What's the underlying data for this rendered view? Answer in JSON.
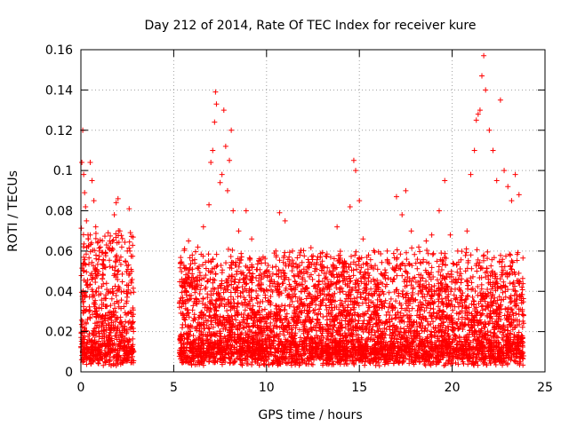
{
  "chart_data": {
    "type": "scatter",
    "title": "Day 212 of 2014, Rate Of TEC Index for receiver kure",
    "xlabel": "GPS time / hours",
    "ylabel": "ROTI / TECUs",
    "xlim": [
      0,
      25
    ],
    "ylim": [
      0,
      0.16
    ],
    "x_ticks": [
      0,
      5,
      10,
      15,
      20,
      25
    ],
    "y_ticks": [
      0,
      0.02,
      0.04,
      0.06,
      0.08,
      0.1,
      0.12,
      0.14,
      0.16
    ],
    "x_tick_labels": [
      "0",
      "5",
      "10",
      "15",
      "20",
      "25"
    ],
    "y_tick_labels": [
      "0",
      "0.02",
      "0.04",
      "0.06",
      "0.08",
      "0.1",
      "0.12",
      "0.14",
      "0.16"
    ],
    "grid": true,
    "marker": "+",
    "marker_color": "#ff0000",
    "data_gap": [
      2.85,
      5.3
    ],
    "points": [
      [
        0.05,
        0.104
      ],
      [
        0.1,
        0.12
      ],
      [
        0.15,
        0.098
      ],
      [
        0.2,
        0.089
      ],
      [
        0.25,
        0.082
      ],
      [
        0.3,
        0.075
      ],
      [
        0.4,
        0.066
      ],
      [
        0.5,
        0.104
      ],
      [
        0.6,
        0.095
      ],
      [
        0.7,
        0.085
      ],
      [
        0.8,
        0.072
      ],
      [
        0.9,
        0.064
      ],
      [
        1.0,
        0.06
      ],
      [
        1.2,
        0.048
      ],
      [
        1.5,
        0.04
      ],
      [
        1.8,
        0.078
      ],
      [
        1.9,
        0.084
      ],
      [
        2.0,
        0.086
      ],
      [
        2.1,
        0.07
      ],
      [
        2.2,
        0.062
      ],
      [
        2.4,
        0.055
      ],
      [
        2.5,
        0.06
      ],
      [
        2.6,
        0.081
      ],
      [
        2.7,
        0.045
      ],
      [
        5.6,
        0.04
      ],
      [
        5.8,
        0.065
      ],
      [
        6.0,
        0.058
      ],
      [
        6.3,
        0.062
      ],
      [
        6.6,
        0.072
      ],
      [
        6.9,
        0.083
      ],
      [
        7.0,
        0.104
      ],
      [
        7.1,
        0.11
      ],
      [
        7.2,
        0.124
      ],
      [
        7.25,
        0.139
      ],
      [
        7.3,
        0.133
      ],
      [
        7.5,
        0.094
      ],
      [
        7.6,
        0.098
      ],
      [
        7.7,
        0.13
      ],
      [
        7.8,
        0.112
      ],
      [
        7.9,
        0.09
      ],
      [
        8.0,
        0.105
      ],
      [
        8.1,
        0.12
      ],
      [
        8.2,
        0.08
      ],
      [
        8.5,
        0.07
      ],
      [
        8.9,
        0.08
      ],
      [
        9.2,
        0.066
      ],
      [
        9.6,
        0.055
      ],
      [
        10.0,
        0.05
      ],
      [
        10.5,
        0.06
      ],
      [
        10.7,
        0.079
      ],
      [
        11.0,
        0.075
      ],
      [
        11.4,
        0.06
      ],
      [
        11.8,
        0.058
      ],
      [
        12.2,
        0.052
      ],
      [
        12.6,
        0.05
      ],
      [
        13.0,
        0.055
      ],
      [
        13.4,
        0.05
      ],
      [
        13.8,
        0.072
      ],
      [
        14.2,
        0.055
      ],
      [
        14.5,
        0.082
      ],
      [
        14.7,
        0.105
      ],
      [
        14.8,
        0.1
      ],
      [
        15.0,
        0.085
      ],
      [
        15.2,
        0.066
      ],
      [
        15.5,
        0.045
      ],
      [
        16.0,
        0.042
      ],
      [
        16.5,
        0.06
      ],
      [
        17.0,
        0.087
      ],
      [
        17.3,
        0.078
      ],
      [
        17.5,
        0.09
      ],
      [
        17.8,
        0.07
      ],
      [
        18.2,
        0.062
      ],
      [
        18.6,
        0.065
      ],
      [
        18.9,
        0.068
      ],
      [
        19.3,
        0.08
      ],
      [
        19.6,
        0.095
      ],
      [
        19.9,
        0.068
      ],
      [
        20.3,
        0.06
      ],
      [
        20.8,
        0.07
      ],
      [
        21.0,
        0.098
      ],
      [
        21.2,
        0.11
      ],
      [
        21.3,
        0.125
      ],
      [
        21.4,
        0.128
      ],
      [
        21.5,
        0.13
      ],
      [
        21.6,
        0.147
      ],
      [
        21.7,
        0.157
      ],
      [
        21.8,
        0.14
      ],
      [
        22.0,
        0.12
      ],
      [
        22.2,
        0.11
      ],
      [
        22.4,
        0.095
      ],
      [
        22.6,
        0.135
      ],
      [
        22.8,
        0.1
      ],
      [
        23.0,
        0.092
      ],
      [
        23.2,
        0.085
      ],
      [
        23.4,
        0.098
      ],
      [
        23.6,
        0.088
      ]
    ],
    "dense_band": {
      "floor_min": 0.003,
      "floor_max": 0.012,
      "segments": [
        {
          "x_start": 0.0,
          "x_end": 2.85,
          "typical_max": 0.06
        },
        {
          "x_start": 5.3,
          "x_end": 23.85,
          "typical_max": 0.05
        }
      ]
    }
  }
}
